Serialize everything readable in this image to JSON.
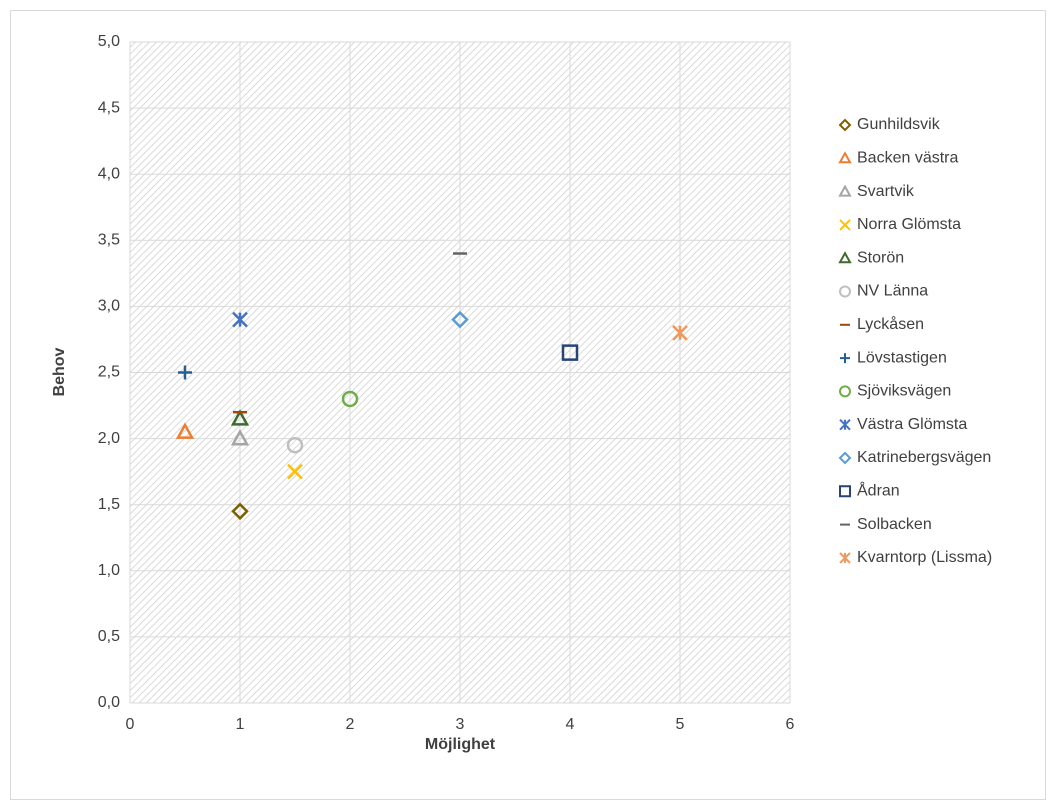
{
  "chart_data": {
    "type": "scatter",
    "x_label": "Möjlighet",
    "y_label": "Behov",
    "xlim": [
      0,
      6
    ],
    "xticks": [
      0,
      1,
      2,
      3,
      4,
      5,
      6
    ],
    "ylim": [
      0,
      5
    ],
    "yticks": [
      {
        "value": 0,
        "label": "0,0"
      },
      {
        "value": 0.5,
        "label": "0,5"
      },
      {
        "value": 1,
        "label": "1,0"
      },
      {
        "value": 1.5,
        "label": "1,5"
      },
      {
        "value": 2,
        "label": "2,0"
      },
      {
        "value": 2.5,
        "label": "2,5"
      },
      {
        "value": 3,
        "label": "3,0"
      },
      {
        "value": 3.5,
        "label": "3,5"
      },
      {
        "value": 4,
        "label": "4,0"
      },
      {
        "value": 4.5,
        "label": "4,5"
      },
      {
        "value": 5,
        "label": "5,0"
      }
    ],
    "grid": true,
    "legend": "right",
    "series": [
      {
        "name": "Gunhildsvik",
        "color": "#7f6000",
        "marker": "diamond",
        "x": [
          1
        ],
        "values": [
          1.45
        ]
      },
      {
        "name": "Backen västra",
        "color": "#ed7d31",
        "marker": "triangle",
        "x": [
          0.5
        ],
        "values": [
          2.05
        ]
      },
      {
        "name": "Svartvik",
        "color": "#a5a5a5",
        "marker": "triangle",
        "x": [
          1
        ],
        "values": [
          2.0
        ]
      },
      {
        "name": "Norra Glömsta",
        "color": "#ffc000",
        "marker": "x",
        "x": [
          1.5
        ],
        "values": [
          1.75
        ]
      },
      {
        "name": "Storön",
        "color": "#3d6b2a",
        "marker": "triangle",
        "x": [
          1
        ],
        "values": [
          2.15
        ]
      },
      {
        "name": "NV Länna",
        "color": "#bfbfbf",
        "marker": "circle",
        "x": [
          1.5
        ],
        "values": [
          1.95
        ]
      },
      {
        "name": "Lyckåsen",
        "color": "#9e480e",
        "marker": "dash",
        "x": [
          1
        ],
        "values": [
          2.2
        ]
      },
      {
        "name": "Lövstastigen",
        "color": "#255e91",
        "marker": "plus",
        "x": [
          0.5
        ],
        "values": [
          2.5
        ]
      },
      {
        "name": "Sjöviksvägen",
        "color": "#70ad47",
        "marker": "circle",
        "x": [
          2
        ],
        "values": [
          2.3
        ]
      },
      {
        "name": "Västra Glömsta",
        "color": "#4472c4",
        "marker": "star",
        "x": [
          1
        ],
        "values": [
          2.9
        ]
      },
      {
        "name": "Katrinebergsvägen",
        "color": "#5b9bd5",
        "marker": "diamond",
        "x": [
          3
        ],
        "values": [
          2.9
        ]
      },
      {
        "name": "Ådran",
        "color": "#264478",
        "marker": "square",
        "x": [
          4
        ],
        "values": [
          2.65
        ]
      },
      {
        "name": "Solbacken",
        "color": "#636363",
        "marker": "dash",
        "x": [
          3
        ],
        "values": [
          3.4
        ]
      },
      {
        "name": "Kvarntorp (Lissma)",
        "color": "#f1975a",
        "marker": "star",
        "x": [
          5
        ],
        "values": [
          2.8
        ]
      }
    ]
  }
}
